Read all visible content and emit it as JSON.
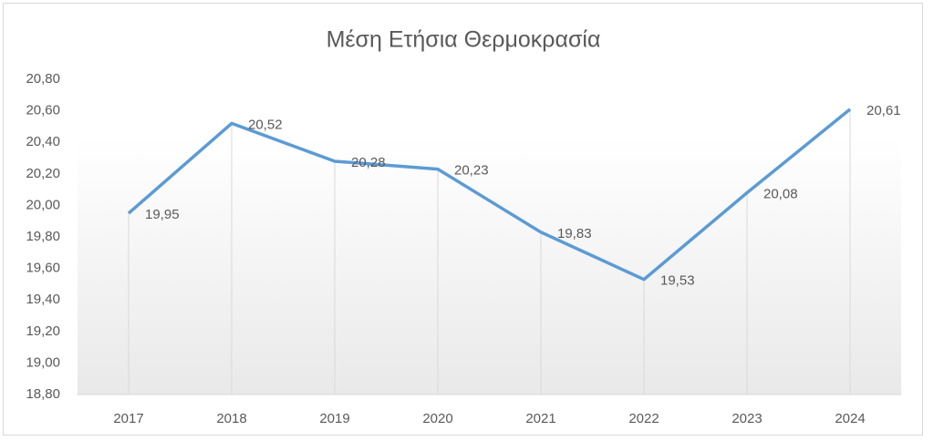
{
  "chart_data": {
    "type": "line",
    "title": "Μέση Ετήσια Θερμοκρασία",
    "categories": [
      "2017",
      "2018",
      "2019",
      "2020",
      "2021",
      "2022",
      "2023",
      "2024"
    ],
    "values": [
      19.95,
      20.52,
      20.28,
      20.23,
      19.83,
      19.53,
      20.08,
      20.61
    ],
    "value_labels": [
      "19,95",
      "20,52",
      "20,28",
      "20,23",
      "19,83",
      "19,53",
      "20,08",
      "20,61"
    ],
    "color": "#5b9bd5",
    "ylim": [
      18.8,
      20.8
    ],
    "yticks": [
      {
        "value": 18.8,
        "label": "18,80"
      },
      {
        "value": 19.0,
        "label": "19,00"
      },
      {
        "value": 19.2,
        "label": "19,20"
      },
      {
        "value": 19.4,
        "label": "19,40"
      },
      {
        "value": 19.6,
        "label": "19,60"
      },
      {
        "value": 19.8,
        "label": "19,80"
      },
      {
        "value": 20.0,
        "label": "20,00"
      },
      {
        "value": 20.2,
        "label": "20,20"
      },
      {
        "value": 20.4,
        "label": "20,40"
      },
      {
        "value": 20.6,
        "label": "20,60"
      },
      {
        "value": 20.8,
        "label": "20,80"
      }
    ],
    "drop_lines": true
  }
}
